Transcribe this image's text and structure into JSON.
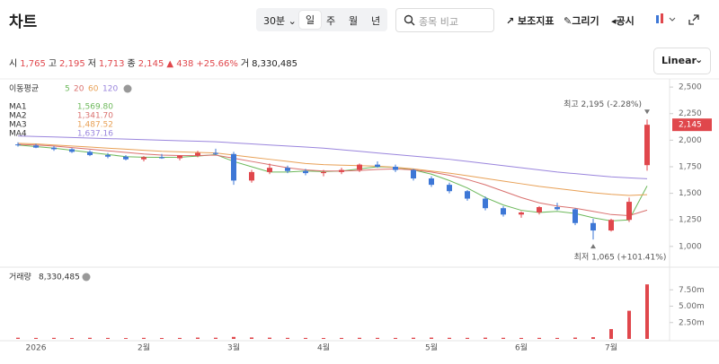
{
  "header": {
    "title": "차트",
    "interval": "30분 ⌄",
    "periods": [
      "일",
      "주",
      "월",
      "년"
    ],
    "search": "종목 비교",
    "tools": [
      "보조지표",
      "그리기",
      "공시"
    ],
    "scale": "Linear",
    "quote": [
      {
        "label": "시",
        "value": "1,765"
      },
      {
        "label": "고",
        "value": "2,195"
      },
      {
        "label": "저",
        "value": "1,713"
      },
      {
        "label": "종",
        "value": "2,145"
      }
    ],
    "change": "▲ 438",
    "change_pct": "+25.66%",
    "volume_label": "거",
    "volume": "8,330,485"
  },
  "chart_data": [
    {
      "type": "candlestick",
      "legend_title": "이동평균",
      "up_color": "#e0474c",
      "down_color": "#3d77d6",
      "categories": [
        null,
        "2026",
        null,
        null,
        null,
        null,
        null,
        "2월",
        null,
        null,
        null,
        null,
        "3월",
        null,
        null,
        null,
        null,
        "4월",
        null,
        null,
        null,
        null,
        null,
        "5월",
        null,
        null,
        null,
        null,
        "6월",
        null,
        null,
        null,
        null,
        "7월",
        null,
        null
      ],
      "ohlc": [
        [
          1960,
          1980,
          1940,
          1955
        ],
        [
          1950,
          1965,
          1925,
          1930
        ],
        [
          1930,
          1945,
          1900,
          1915
        ],
        [
          1915,
          1925,
          1880,
          1890
        ],
        [
          1890,
          1905,
          1850,
          1860
        ],
        [
          1860,
          1880,
          1830,
          1845
        ],
        [
          1845,
          1860,
          1810,
          1820
        ],
        [
          1820,
          1850,
          1800,
          1840
        ],
        [
          1840,
          1870,
          1825,
          1830
        ],
        [
          1830,
          1860,
          1810,
          1855
        ],
        [
          1855,
          1900,
          1840,
          1880
        ],
        [
          1880,
          1920,
          1860,
          1870
        ],
        [
          1870,
          1890,
          1580,
          1620
        ],
        [
          1620,
          1720,
          1600,
          1700
        ],
        [
          1700,
          1780,
          1680,
          1740
        ],
        [
          1740,
          1760,
          1690,
          1710
        ],
        [
          1710,
          1730,
          1670,
          1690
        ],
        [
          1690,
          1720,
          1660,
          1700
        ],
        [
          1700,
          1740,
          1680,
          1720
        ],
        [
          1720,
          1780,
          1700,
          1770
        ],
        [
          1770,
          1800,
          1740,
          1750
        ],
        [
          1750,
          1770,
          1700,
          1720
        ],
        [
          1720,
          1730,
          1620,
          1640
        ],
        [
          1640,
          1660,
          1560,
          1580
        ],
        [
          1580,
          1600,
          1500,
          1520
        ],
        [
          1520,
          1530,
          1430,
          1450
        ],
        [
          1450,
          1470,
          1340,
          1360
        ],
        [
          1360,
          1380,
          1280,
          1300
        ],
        [
          1300,
          1330,
          1270,
          1320
        ],
        [
          1320,
          1380,
          1300,
          1370
        ],
        [
          1370,
          1410,
          1340,
          1350
        ],
        [
          1350,
          1360,
          1200,
          1220
        ],
        [
          1220,
          1260,
          1065,
          1150
        ],
        [
          1150,
          1260,
          1140,
          1250
        ],
        [
          1250,
          1460,
          1230,
          1420
        ],
        [
          1765,
          2195,
          1713,
          2145
        ]
      ],
      "series": [
        {
          "name": "MA1",
          "period": 5,
          "color": "#6cb85a",
          "legend_value": "1,569.80",
          "values": [
            1955,
            1940,
            1925,
            1905,
            1885,
            1865,
            1845,
            1840,
            1838,
            1840,
            1850,
            1865,
            1800,
            1750,
            1700,
            1700,
            1710,
            1705,
            1710,
            1730,
            1750,
            1745,
            1720,
            1680,
            1620,
            1550,
            1460,
            1390,
            1340,
            1320,
            1330,
            1310,
            1270,
            1240,
            1250,
            1569.8
          ]
        },
        {
          "name": "MA2",
          "period": 20,
          "color": "#d9706e",
          "legend_value": "1,341.70",
          "values": [
            1960,
            1955,
            1945,
            1930,
            1915,
            1900,
            1885,
            1870,
            1860,
            1855,
            1855,
            1860,
            1830,
            1800,
            1770,
            1740,
            1720,
            1710,
            1710,
            1715,
            1725,
            1730,
            1720,
            1700,
            1670,
            1630,
            1580,
            1520,
            1460,
            1410,
            1380,
            1360,
            1330,
            1300,
            1290,
            1341.7
          ]
        },
        {
          "name": "MA3",
          "period": 60,
          "color": "#e8a055",
          "legend_value": "1,487.52",
          "values": [
            1970,
            1965,
            1955,
            1945,
            1935,
            1925,
            1915,
            1905,
            1895,
            1890,
            1885,
            1880,
            1860,
            1840,
            1820,
            1800,
            1780,
            1770,
            1765,
            1760,
            1755,
            1745,
            1730,
            1710,
            1690,
            1665,
            1640,
            1615,
            1590,
            1565,
            1545,
            1525,
            1505,
            1490,
            1480,
            1487.52
          ]
        },
        {
          "name": "MA4",
          "period": 120,
          "color": "#9a85dd",
          "legend_value": "1,637.16",
          "values": [
            2040,
            2035,
            2030,
            2025,
            2020,
            2015,
            2010,
            2005,
            2000,
            1995,
            1990,
            1985,
            1975,
            1965,
            1955,
            1945,
            1935,
            1925,
            1910,
            1895,
            1880,
            1865,
            1850,
            1835,
            1820,
            1800,
            1780,
            1760,
            1740,
            1720,
            1700,
            1685,
            1670,
            1655,
            1645,
            1637.16
          ]
        }
      ],
      "ylim": [
        830,
        2560
      ],
      "yticks": [
        {
          "value": 1000,
          "label": "1,000"
        },
        {
          "value": 1250,
          "label": "1,250"
        },
        {
          "value": 1500,
          "label": "1,500"
        },
        {
          "value": 1750,
          "label": "1,750"
        },
        {
          "value": 2000,
          "label": "2,000"
        },
        {
          "value": 2250,
          "label": "2,250"
        },
        {
          "value": 2500,
          "label": "2,500"
        }
      ],
      "last_label": "2,145",
      "high_annotation": "최고  2,195 (-2.28%)",
      "low_annotation": "최저  1,065 (+101.41%)"
    },
    {
      "type": "bar",
      "title": "거래량",
      "title_value": "8,330,485",
      "color": "#e0474c",
      "values": [
        180000,
        150000,
        160000,
        140000,
        170000,
        150000,
        130000,
        160000,
        140000,
        150000,
        200000,
        180000,
        300000,
        220000,
        190000,
        160000,
        150000,
        140000,
        150000,
        170000,
        160000,
        150000,
        180000,
        200000,
        170000,
        160000,
        190000,
        170000,
        150000,
        160000,
        150000,
        200000,
        260000,
        1500000,
        4300000,
        8330485
      ],
      "ylim": [
        0,
        10000000
      ],
      "yticks": [
        {
          "value": 2500000,
          "label": "2.50m"
        },
        {
          "value": 5000000,
          "label": "5.00m"
        },
        {
          "value": 7500000,
          "label": "7.50m"
        }
      ]
    }
  ]
}
